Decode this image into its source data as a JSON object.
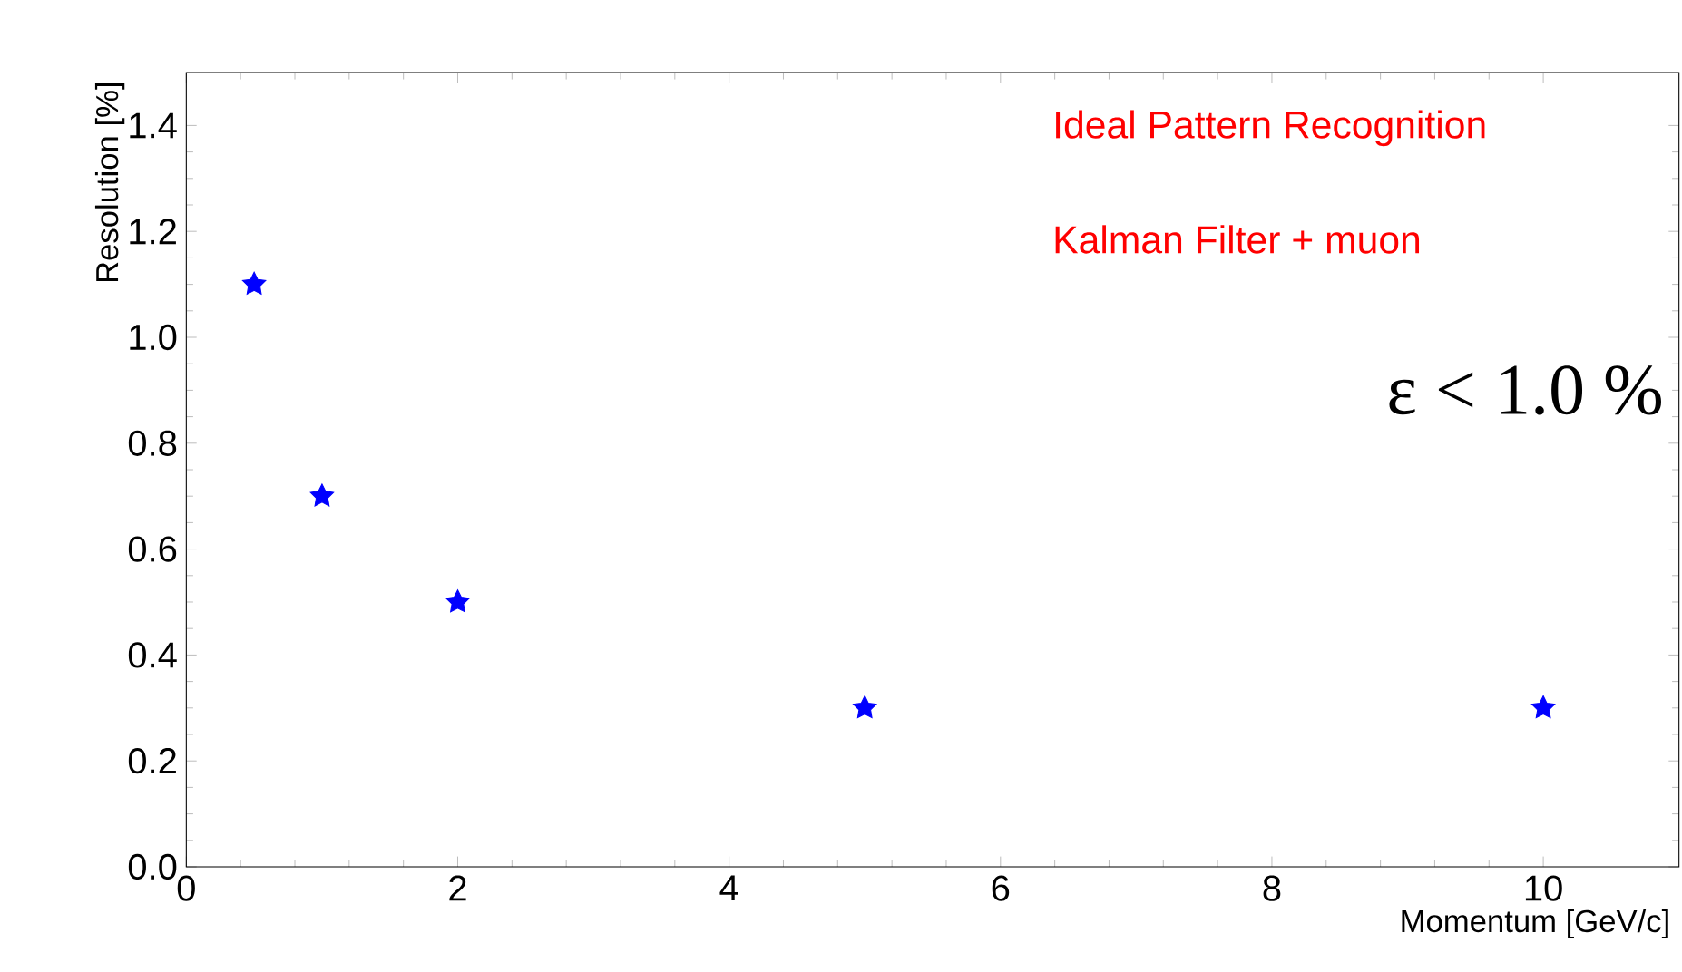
{
  "chart_data": {
    "type": "scatter",
    "xlabel": "Momentum [GeV/c]",
    "ylabel": "Resolution [%]",
    "x": [
      0.5,
      1,
      2,
      5,
      10
    ],
    "values": [
      1.1,
      0.7,
      0.5,
      0.3,
      0.3
    ],
    "color": "#0000ff",
    "marker": "star",
    "xlim": [
      0,
      11
    ],
    "ylim": [
      0,
      1.5
    ],
    "xticks": [
      0,
      2,
      4,
      6,
      8,
      10
    ],
    "yticks": [
      {
        "value": 0,
        "label": "0.0"
      },
      {
        "value": 0.2,
        "label": "0.2"
      },
      {
        "value": 0.4,
        "label": "0.4"
      },
      {
        "value": 0.6,
        "label": "0.6"
      },
      {
        "value": 0.8,
        "label": "0.8"
      },
      {
        "value": 1.0,
        "label": "1.0"
      },
      {
        "value": 1.2,
        "label": "1.2"
      },
      {
        "value": 1.4,
        "label": "1.4"
      }
    ],
    "annotations": [
      "Ideal Pattern Recognition",
      "Kalman Filter + muon",
      "ε < 1.0 %"
    ]
  }
}
